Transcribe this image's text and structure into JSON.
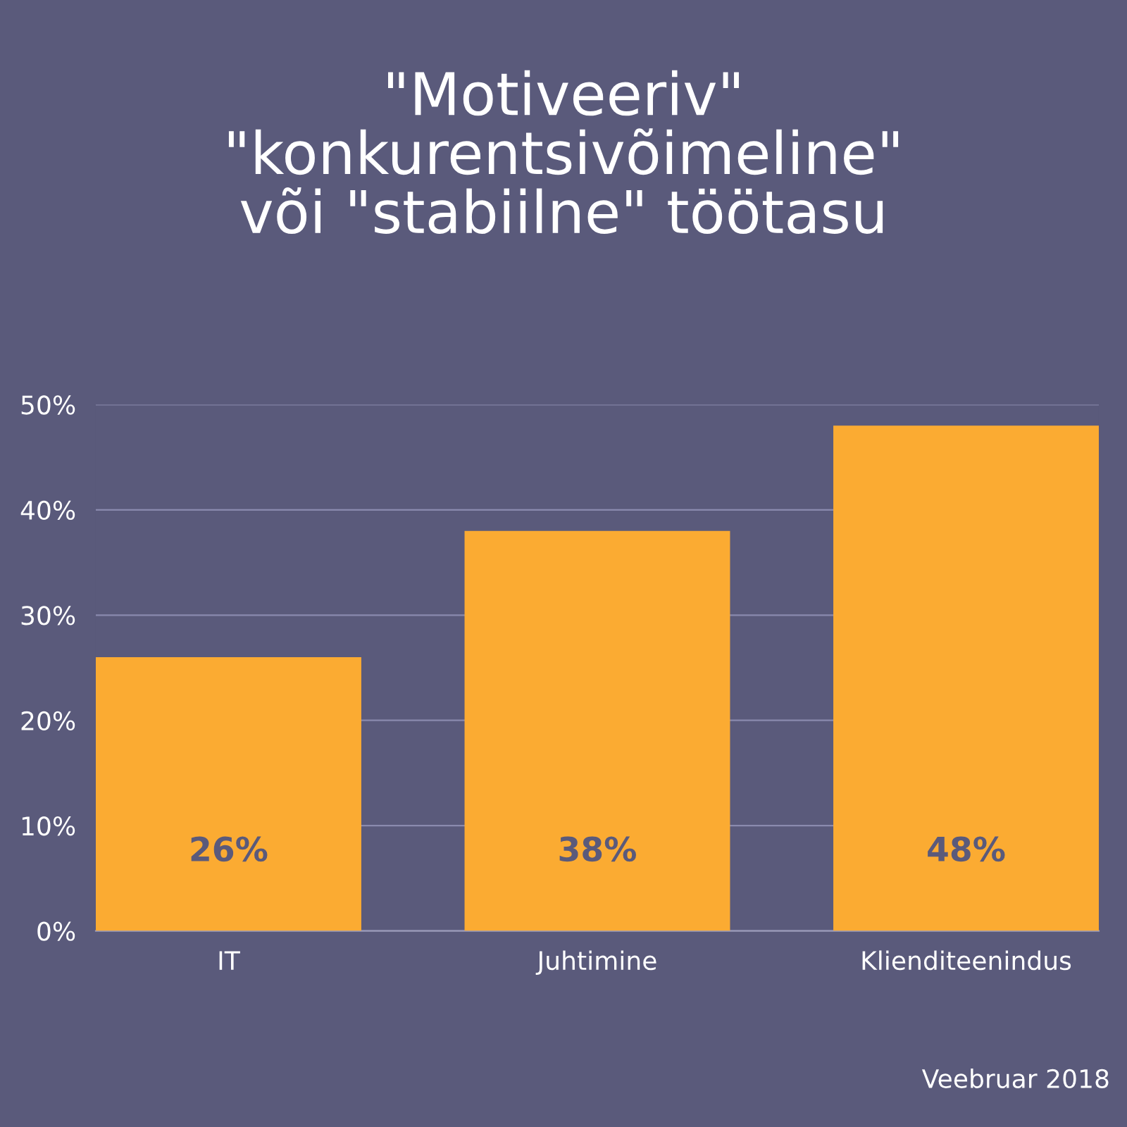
{
  "chart_data": {
    "type": "bar",
    "title": "\"Motiveeriv\"\n\"konkurentsivõimeline\"\nvõi \"stabiilne\" töötasu",
    "categories": [
      "IT",
      "Juhtimine",
      "Klienditeenindus"
    ],
    "values": [
      26,
      38,
      48
    ],
    "value_labels": [
      "26%",
      "38%",
      "48%"
    ],
    "color": "#fbab32",
    "ylim": [
      0,
      50
    ],
    "yticks": [
      {
        "value": 0,
        "label": "0%"
      },
      {
        "value": 10,
        "label": "10%"
      },
      {
        "value": 20,
        "label": "20%"
      },
      {
        "value": 30,
        "label": "30%"
      },
      {
        "value": 40,
        "label": "40%"
      },
      {
        "value": 50,
        "label": "50%"
      }
    ],
    "grid": "y",
    "annotations": [
      "Veebruar 2018"
    ]
  }
}
